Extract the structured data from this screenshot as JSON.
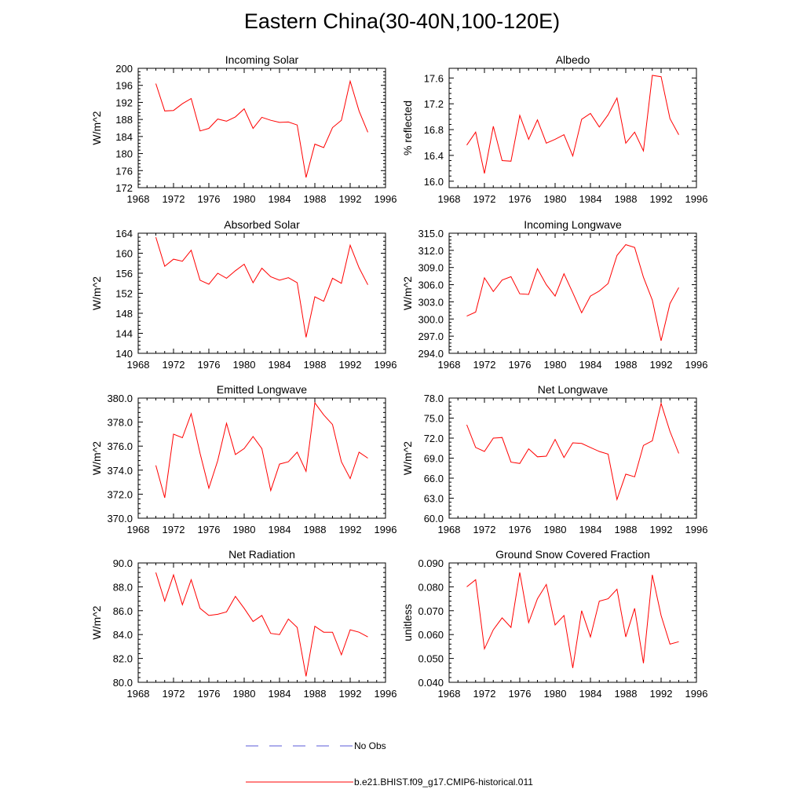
{
  "title": "Eastern China(30-40N,100-120E)",
  "years": [
    1970,
    1971,
    1972,
    1973,
    1974,
    1975,
    1976,
    1977,
    1978,
    1979,
    1980,
    1981,
    1982,
    1983,
    1984,
    1985,
    1986,
    1987,
    1988,
    1989,
    1990,
    1991,
    1992,
    1993,
    1994
  ],
  "x_axis": {
    "min": 1968,
    "max": 1996,
    "ticks": [
      1968,
      1972,
      1976,
      1980,
      1984,
      1988,
      1992,
      1996
    ]
  },
  "series_color": "#ff0000",
  "obs_color": "#5a5ad8",
  "chart_data": [
    {
      "type": "line",
      "title": "Incoming Solar",
      "ylabel": "W/m^2",
      "ylim": [
        172,
        200
      ],
      "yticks": [
        "172",
        "176",
        "180",
        "184",
        "188",
        "192",
        "196",
        "200"
      ],
      "values": [
        196.4,
        190.0,
        190.1,
        191.7,
        192.9,
        185.3,
        185.9,
        188.1,
        187.6,
        188.6,
        190.5,
        185.9,
        188.5,
        187.8,
        187.3,
        187.4,
        186.7,
        174.4,
        182.2,
        181.4,
        186.1,
        187.8,
        197.0,
        190.0,
        185.0
      ]
    },
    {
      "type": "line",
      "title": "Albedo",
      "ylabel": "% reflected",
      "ylim": [
        15.9,
        17.75
      ],
      "yticks": [
        "16.0",
        "16.4",
        "16.8",
        "17.2",
        "17.6"
      ],
      "values": [
        16.56,
        16.76,
        16.12,
        16.85,
        16.32,
        16.31,
        17.02,
        16.65,
        16.95,
        16.59,
        16.65,
        16.72,
        16.39,
        16.96,
        17.05,
        16.84,
        17.03,
        17.29,
        16.59,
        16.76,
        16.47,
        17.64,
        17.62,
        16.97,
        16.72
      ]
    },
    {
      "type": "line",
      "title": "Absorbed Solar",
      "ylabel": "W/m^2",
      "ylim": [
        140,
        164
      ],
      "yticks": [
        "140",
        "144",
        "148",
        "152",
        "156",
        "160",
        "164"
      ],
      "values": [
        163.2,
        157.4,
        158.8,
        158.4,
        160.6,
        154.6,
        153.8,
        156.0,
        155.0,
        156.5,
        157.8,
        154.1,
        157.0,
        155.3,
        154.6,
        155.1,
        154.1,
        143.2,
        151.3,
        150.4,
        155.0,
        154.0,
        161.6,
        157.1,
        153.7
      ]
    },
    {
      "type": "line",
      "title": "Incoming Longwave",
      "ylabel": "W/m^2",
      "ylim": [
        294.0,
        315.0
      ],
      "yticks": [
        "294.0",
        "297.0",
        "300.0",
        "303.0",
        "306.0",
        "309.0",
        "312.0",
        "315.0"
      ],
      "values": [
        300.5,
        301.2,
        307.2,
        304.8,
        306.8,
        307.4,
        304.4,
        304.3,
        308.8,
        306.0,
        304.0,
        307.9,
        304.6,
        301.1,
        304.0,
        304.9,
        306.2,
        311.1,
        313.0,
        312.5,
        307.3,
        303.3,
        296.2,
        302.7,
        305.5
      ]
    },
    {
      "type": "line",
      "title": "Emitted Longwave",
      "ylabel": "W/m^2",
      "ylim": [
        370.0,
        380.0
      ],
      "yticks": [
        "370.0",
        "372.0",
        "374.0",
        "376.0",
        "378.0",
        "380.0"
      ],
      "values": [
        374.4,
        371.7,
        377.0,
        376.7,
        378.7,
        375.4,
        372.5,
        374.8,
        377.9,
        375.3,
        375.8,
        376.8,
        375.8,
        372.3,
        374.5,
        374.7,
        375.5,
        373.9,
        379.6,
        378.6,
        377.8,
        374.7,
        373.3,
        375.5,
        375.0
      ]
    },
    {
      "type": "line",
      "title": "Net Longwave",
      "ylabel": "W/m^2",
      "ylim": [
        60.0,
        78.0
      ],
      "yticks": [
        "60.0",
        "63.0",
        "66.0",
        "69.0",
        "72.0",
        "75.0",
        "78.0"
      ],
      "values": [
        74.0,
        70.6,
        70.0,
        72.0,
        72.1,
        68.4,
        68.2,
        70.4,
        69.2,
        69.3,
        71.8,
        69.1,
        71.3,
        71.2,
        70.6,
        70.0,
        69.6,
        62.8,
        66.6,
        66.2,
        70.9,
        71.6,
        77.2,
        73.0,
        69.7
      ]
    },
    {
      "type": "line",
      "title": "Net Radiation",
      "ylabel": "W/m^2",
      "ylim": [
        80.0,
        90.0
      ],
      "yticks": [
        "80.0",
        "82.0",
        "84.0",
        "86.0",
        "88.0",
        "90.0"
      ],
      "values": [
        89.2,
        86.8,
        89.0,
        86.5,
        88.6,
        86.2,
        85.6,
        85.7,
        85.9,
        87.2,
        86.2,
        85.1,
        85.6,
        84.1,
        84.0,
        85.3,
        84.6,
        80.5,
        84.7,
        84.2,
        84.2,
        82.3,
        84.4,
        84.2,
        83.8
      ]
    },
    {
      "type": "line",
      "title": "Ground Snow Covered Fraction",
      "ylabel": "unitless",
      "ylim": [
        0.04,
        0.09
      ],
      "yticks": [
        "0.040",
        "0.050",
        "0.060",
        "0.070",
        "0.080",
        "0.090"
      ],
      "values": [
        0.08,
        0.083,
        0.054,
        0.062,
        0.067,
        0.063,
        0.086,
        0.065,
        0.075,
        0.081,
        0.064,
        0.068,
        0.046,
        0.07,
        0.059,
        0.074,
        0.075,
        0.079,
        0.059,
        0.071,
        0.048,
        0.085,
        0.068,
        0.056,
        0.057
      ]
    }
  ],
  "legend": {
    "obs_label": "No Obs",
    "model_label": "b.e21.BHIST.f09_g17.CMIP6-historical.011"
  }
}
